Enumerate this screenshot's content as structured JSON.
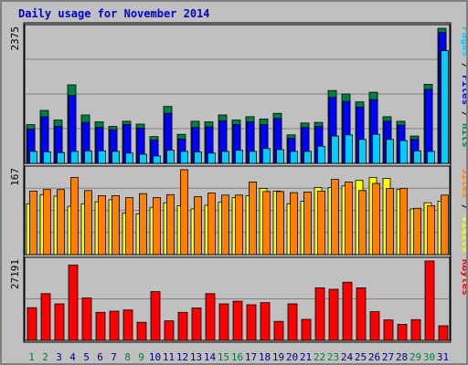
{
  "title": "Daily usage for November 2014",
  "chart_data": [
    {
      "type": "bar",
      "panel": "pages-files-hits",
      "ymax_label": "2375",
      "ylim": [
        0,
        2375
      ],
      "legend": [
        {
          "text": "Pages",
          "color": "#00ccff"
        },
        {
          "text": "Files",
          "color": "#0000ff"
        },
        {
          "text": "Hits",
          "color": "#008040"
        }
      ],
      "categories": [
        "1",
        "2",
        "3",
        "4",
        "5",
        "6",
        "7",
        "8",
        "9",
        "10",
        "11",
        "12",
        "13",
        "14",
        "15",
        "16",
        "17",
        "18",
        "19",
        "20",
        "21",
        "22",
        "23",
        "24",
        "25",
        "26",
        "27",
        "28",
        "29",
        "30",
        "31"
      ],
      "series": [
        {
          "name": "Hits",
          "color": "#008040",
          "values": [
            680,
            930,
            760,
            1380,
            850,
            730,
            650,
            740,
            690,
            470,
            1000,
            510,
            740,
            730,
            850,
            760,
            820,
            780,
            880,
            500,
            710,
            720,
            1280,
            1220,
            1080,
            1250,
            820,
            740,
            480,
            1390,
            2375
          ]
        },
        {
          "name": "Files",
          "color": "#0000ff",
          "values": [
            600,
            820,
            650,
            1190,
            720,
            630,
            590,
            680,
            620,
            410,
            880,
            430,
            630,
            640,
            750,
            680,
            730,
            680,
            790,
            440,
            630,
            650,
            1160,
            1090,
            990,
            1120,
            740,
            670,
            420,
            1300,
            2300
          ]
        },
        {
          "name": "Pages",
          "color": "#00ccff",
          "values": [
            210,
            200,
            190,
            210,
            220,
            220,
            210,
            180,
            160,
            130,
            230,
            210,
            200,
            180,
            210,
            230,
            210,
            260,
            240,
            210,
            210,
            300,
            480,
            500,
            420,
            510,
            420,
            400,
            220,
            210,
            1980
          ]
        }
      ]
    },
    {
      "type": "bar",
      "panel": "sites-visits",
      "ymax_label": "167",
      "ylim": [
        0,
        167
      ],
      "legend": [
        {
          "text": "Sites",
          "color": "#ff8000"
        },
        {
          "text": "Visits",
          "color": "#ffff00"
        }
      ],
      "categories": [
        "1",
        "2",
        "3",
        "4",
        "5",
        "6",
        "7",
        "8",
        "9",
        "10",
        "11",
        "12",
        "13",
        "14",
        "15",
        "16",
        "17",
        "18",
        "19",
        "20",
        "21",
        "22",
        "23",
        "24",
        "25",
        "26",
        "27",
        "28",
        "29",
        "30",
        "31"
      ],
      "series": [
        {
          "name": "Visits",
          "color": "#ffff00",
          "values": [
            100,
            118,
            115,
            95,
            100,
            104,
            108,
            82,
            80,
            93,
            102,
            96,
            90,
            97,
            103,
            112,
            116,
            130,
            125,
            100,
            105,
            132,
            132,
            135,
            146,
            152,
            150,
            128,
            90,
            102,
            105
          ]
        },
        {
          "name": "Sites",
          "color": "#ff8000",
          "values": [
            125,
            128,
            128,
            152,
            126,
            116,
            116,
            112,
            120,
            112,
            118,
            167,
            114,
            121,
            117,
            117,
            143,
            124,
            124,
            122,
            123,
            125,
            148,
            143,
            126,
            140,
            130,
            130,
            91,
            96,
            117
          ]
        }
      ]
    },
    {
      "type": "bar",
      "panel": "kbytes",
      "ymax_label": "27191",
      "ylim": [
        0,
        27191
      ],
      "legend": [
        {
          "text": "KBytes",
          "color": "#ff0000"
        }
      ],
      "categories": [
        "1",
        "2",
        "3",
        "4",
        "5",
        "6",
        "7",
        "8",
        "9",
        "10",
        "11",
        "12",
        "13",
        "14",
        "15",
        "16",
        "17",
        "18",
        "19",
        "20",
        "21",
        "22",
        "23",
        "24",
        "25",
        "26",
        "27",
        "28",
        "29",
        "30",
        "31"
      ],
      "series": [
        {
          "name": "KBytes",
          "color": "#ff0000",
          "values": [
            11200,
            16000,
            12500,
            25800,
            14500,
            9600,
            10000,
            10400,
            6200,
            16700,
            6700,
            9600,
            11100,
            16000,
            12500,
            13400,
            12200,
            12900,
            6500,
            12500,
            7200,
            18000,
            17500,
            19900,
            18000,
            9800,
            7000,
            5500,
            7100,
            27191,
            5000
          ]
        }
      ]
    }
  ],
  "weekend_color": "#008040",
  "weekday_color": "#000080",
  "weekend_days": [
    "1",
    "2",
    "8",
    "9",
    "15",
    "16",
    "22",
    "23",
    "29",
    "30"
  ]
}
